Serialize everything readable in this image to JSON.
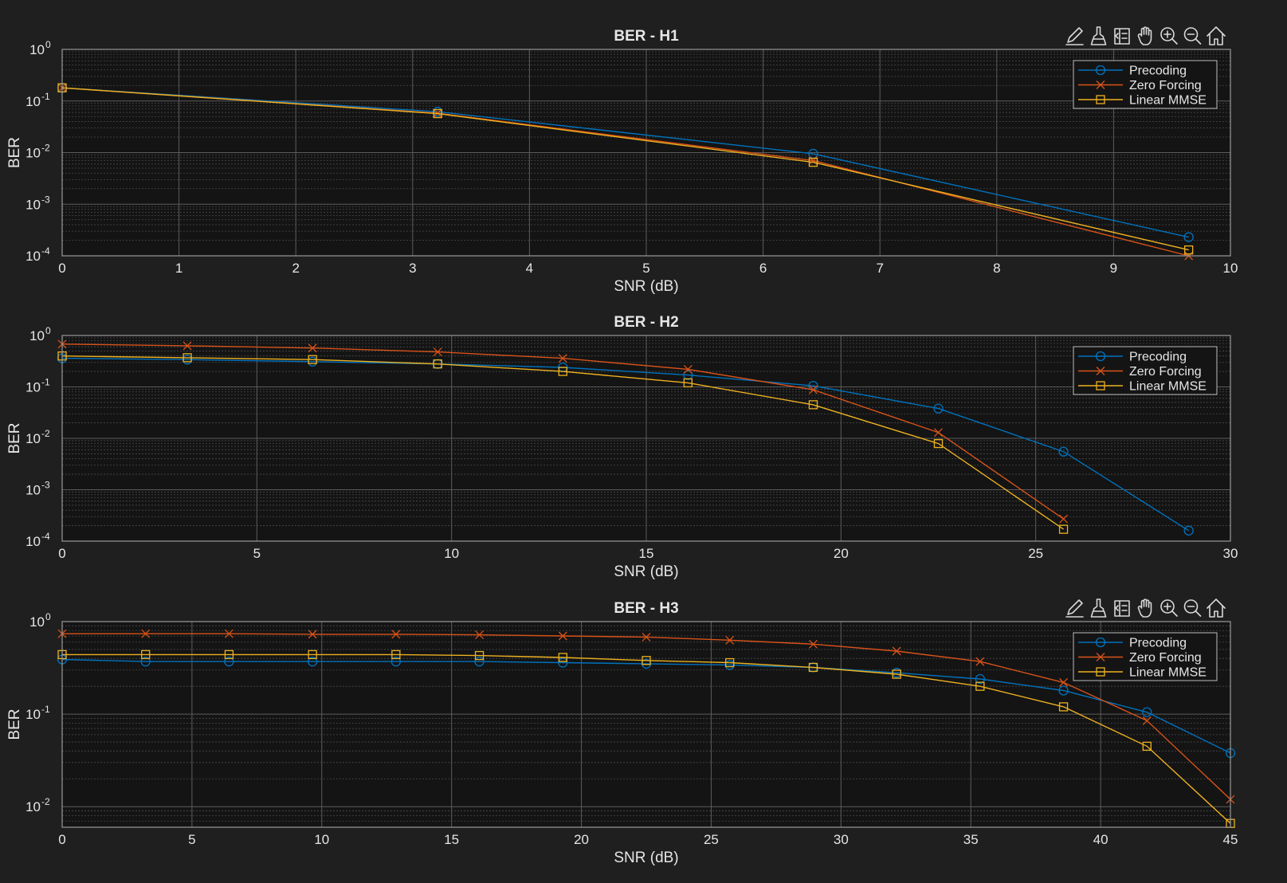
{
  "toolbar": {
    "icons": [
      "edit-icon",
      "brush-icon",
      "data-tips-icon",
      "pan-icon",
      "zoom-in-icon",
      "zoom-out-icon",
      "home-icon"
    ]
  },
  "colors": {
    "precoding": "#0072bd",
    "zero_forcing": "#d95319",
    "linear_mmse": "#edb120"
  },
  "chart_data": [
    {
      "type": "line",
      "title": "BER - H1",
      "xlabel": "SNR (dB)",
      "ylabel": "BER",
      "yscale": "log",
      "xlim": [
        0,
        10
      ],
      "ylim": [
        0.0001,
        1
      ],
      "xticks": [
        0,
        1,
        2,
        3,
        4,
        5,
        6,
        7,
        8,
        9,
        10
      ],
      "yticks": [
        {
          "base": "10",
          "exp": "0",
          "value": 1
        },
        {
          "base": "10",
          "exp": "-1",
          "value": 0.1
        },
        {
          "base": "10",
          "exp": "-2",
          "value": 0.01
        },
        {
          "base": "10",
          "exp": "-3",
          "value": 0.001
        },
        {
          "base": "10",
          "exp": "-4",
          "value": 0.0001
        }
      ],
      "grid": true,
      "legend_position": "top-right",
      "toolbar": true,
      "series": [
        {
          "name": "Precoding",
          "marker": "circle",
          "x": [
            0,
            3.2143,
            6.4286,
            9.6429
          ],
          "y": [
            0.18,
            0.062,
            0.0095,
            0.00023
          ]
        },
        {
          "name": "Zero Forcing",
          "marker": "x",
          "x": [
            0,
            3.2143,
            6.4286,
            9.6429
          ],
          "y": [
            0.18,
            0.058,
            0.007,
            0.0001
          ]
        },
        {
          "name": "Linear MMSE",
          "marker": "square",
          "x": [
            0,
            3.2143,
            6.4286,
            9.6429
          ],
          "y": [
            0.18,
            0.057,
            0.0065,
            0.00013
          ]
        }
      ]
    },
    {
      "type": "line",
      "title": "BER - H2",
      "xlabel": "SNR (dB)",
      "ylabel": "BER",
      "yscale": "log",
      "xlim": [
        0,
        30
      ],
      "ylim": [
        0.0001,
        1
      ],
      "xticks": [
        0,
        5,
        10,
        15,
        20,
        25,
        30
      ],
      "yticks": [
        {
          "base": "10",
          "exp": "0",
          "value": 1
        },
        {
          "base": "10",
          "exp": "-1",
          "value": 0.1
        },
        {
          "base": "10",
          "exp": "-2",
          "value": 0.01
        },
        {
          "base": "10",
          "exp": "-3",
          "value": 0.001
        },
        {
          "base": "10",
          "exp": "-4",
          "value": 0.0001
        }
      ],
      "grid": true,
      "legend_position": "top-right",
      "toolbar": false,
      "series": [
        {
          "name": "Precoding",
          "marker": "circle",
          "x": [
            0,
            3.2143,
            6.4286,
            9.6429,
            12.857,
            16.071,
            19.286,
            22.5,
            25.714,
            28.929
          ],
          "y": [
            0.36,
            0.34,
            0.31,
            0.28,
            0.24,
            0.17,
            0.105,
            0.038,
            0.0055,
            0.00016
          ]
        },
        {
          "name": "Zero Forcing",
          "marker": "x",
          "x": [
            0,
            3.2143,
            6.4286,
            9.6429,
            12.857,
            16.071,
            19.286,
            22.5,
            25.714
          ],
          "y": [
            0.68,
            0.63,
            0.57,
            0.48,
            0.36,
            0.22,
            0.088,
            0.013,
            0.00027
          ]
        },
        {
          "name": "Linear MMSE",
          "marker": "square",
          "x": [
            0,
            3.2143,
            6.4286,
            9.6429,
            12.857,
            16.071,
            19.286,
            22.5,
            25.714
          ],
          "y": [
            0.4,
            0.37,
            0.34,
            0.28,
            0.2,
            0.12,
            0.045,
            0.0079,
            0.00017
          ]
        }
      ]
    },
    {
      "type": "line",
      "title": "BER - H3",
      "xlabel": "SNR (dB)",
      "ylabel": "BER",
      "yscale": "log",
      "xlim": [
        0,
        45
      ],
      "ylim": [
        0.006,
        1
      ],
      "xticks": [
        0,
        5,
        10,
        15,
        20,
        25,
        30,
        35,
        40,
        45
      ],
      "yticks": [
        {
          "base": "10",
          "exp": "0",
          "value": 1
        },
        {
          "base": "10",
          "exp": "-1",
          "value": 0.1
        },
        {
          "base": "10",
          "exp": "-2",
          "value": 0.01
        }
      ],
      "grid": true,
      "legend_position": "top-right",
      "toolbar": true,
      "series": [
        {
          "name": "Precoding",
          "marker": "circle",
          "x": [
            0,
            3.2143,
            6.4286,
            9.6429,
            12.857,
            16.071,
            19.286,
            22.5,
            25.714,
            28.929,
            32.143,
            35.357,
            38.571,
            41.786,
            45
          ],
          "y": [
            0.39,
            0.37,
            0.37,
            0.37,
            0.37,
            0.37,
            0.36,
            0.35,
            0.34,
            0.32,
            0.28,
            0.24,
            0.18,
            0.105,
            0.038
          ]
        },
        {
          "name": "Zero Forcing",
          "marker": "x",
          "x": [
            0,
            3.2143,
            6.4286,
            9.6429,
            12.857,
            16.071,
            19.286,
            22.5,
            25.714,
            28.929,
            32.143,
            35.357,
            38.571,
            41.786,
            45
          ],
          "y": [
            0.74,
            0.74,
            0.74,
            0.73,
            0.73,
            0.72,
            0.7,
            0.68,
            0.63,
            0.57,
            0.48,
            0.37,
            0.22,
            0.085,
            0.012
          ]
        },
        {
          "name": "Linear MMSE",
          "marker": "square",
          "x": [
            0,
            3.2143,
            6.4286,
            9.6429,
            12.857,
            16.071,
            19.286,
            22.5,
            25.714,
            28.929,
            32.143,
            35.357,
            38.571,
            41.786,
            45
          ],
          "y": [
            0.44,
            0.44,
            0.44,
            0.44,
            0.44,
            0.43,
            0.41,
            0.38,
            0.36,
            0.32,
            0.27,
            0.2,
            0.12,
            0.045,
            0.0066
          ]
        }
      ]
    }
  ]
}
